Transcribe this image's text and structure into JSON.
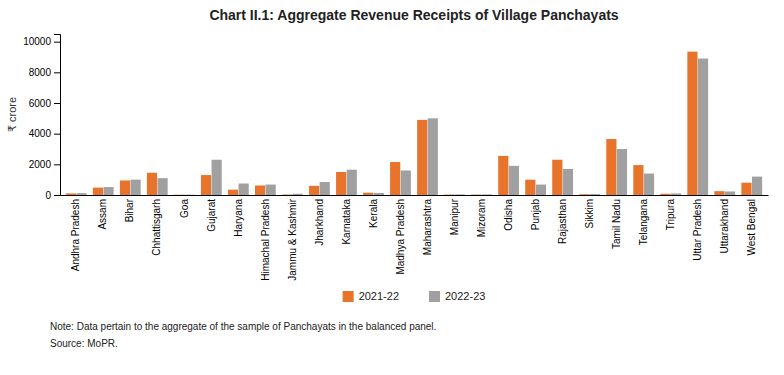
{
  "chart_data": {
    "type": "bar",
    "title": "Chart II.1: Aggregate Revenue Receipts of Village Panchayats",
    "y_label": "₹ crore",
    "categories": [
      "Andhra Pradesh",
      "Assam",
      "Bihar",
      "Chhattisgarh",
      "Goa",
      "Gujarat",
      "Haryana",
      "Himachal Pradesh",
      "Jammu & Kashmir",
      "Jharkhand",
      "Karnataka",
      "Kerala",
      "Madhya Pradesh",
      "Maharashtra",
      "Manipur",
      "Mizoram",
      "Odisha",
      "Punjab",
      "Rajasthan",
      "Sikkim",
      "Tamil Nadu",
      "Telangana",
      "Tripura",
      "Uttar Pradesh",
      "Uttarakhand",
      "West Bengal"
    ],
    "series": [
      {
        "name": "2021-22",
        "color": "#E8732A",
        "values": [
          100,
          480,
          950,
          1450,
          20,
          1300,
          350,
          620,
          30,
          600,
          1500,
          150,
          2150,
          4900,
          30,
          30,
          2550,
          1000,
          2300,
          50,
          3650,
          1950,
          80,
          9350,
          250,
          800
        ]
      },
      {
        "name": "2022-23",
        "color": "#A0A0A0",
        "values": [
          120,
          520,
          1000,
          1100,
          25,
          2300,
          750,
          680,
          80,
          850,
          1650,
          130,
          1600,
          5000,
          40,
          40,
          1900,
          680,
          1700,
          60,
          3000,
          1400,
          100,
          8900,
          230,
          1200
        ]
      }
    ],
    "ylim": [
      0,
      10500
    ],
    "yticks": [
      0,
      2000,
      4000,
      6000,
      8000,
      10000
    ],
    "grid": false,
    "legend": "bottom",
    "annotations": [
      "Note: Data pertain to the aggregate of the sample of Panchayats in the balanced panel.",
      "Source: MoPR."
    ]
  }
}
